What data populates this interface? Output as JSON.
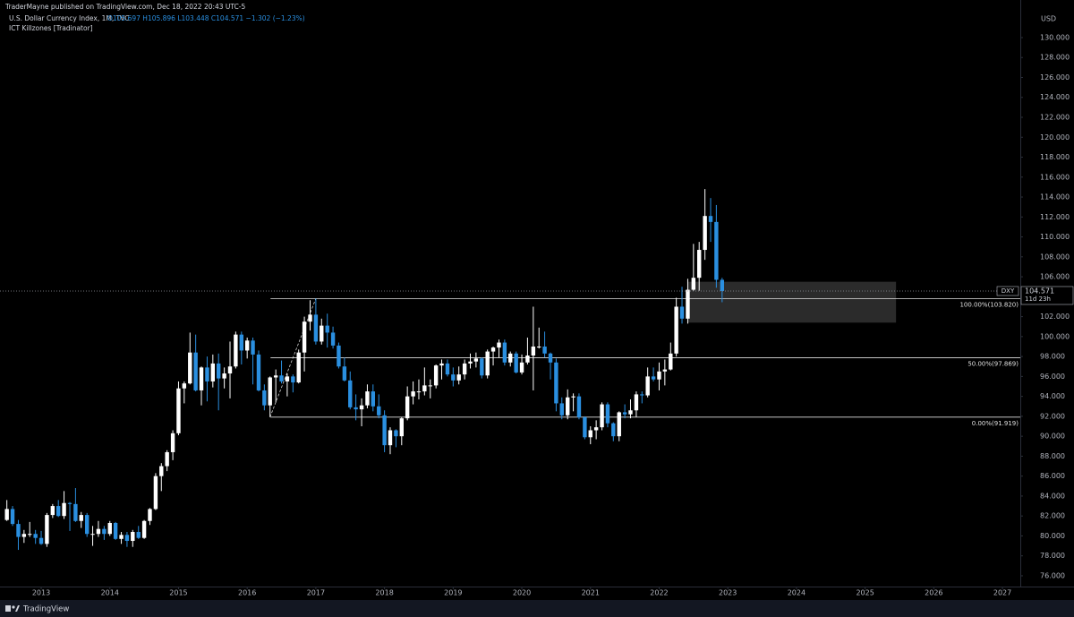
{
  "header": {
    "publisher": "TraderMayne published on TradingView.com, Dec 18, 2022 20:43 UTC-5",
    "symbol": "U.S. Dollar Currency Index, 1M, TVC",
    "ohlc": "O105.697 H105.896 L103.448 C104.571 −1.302 (−1.23%)",
    "indicator": "ICT Killzones [Tradinator]"
  },
  "footer": {
    "brand": "TradingView"
  },
  "chart_data": {
    "type": "candlestick",
    "currency": "USD",
    "up_color": "#ffffff",
    "down_color": "#2a8fe0",
    "xlim": [
      2012.4,
      2027.26
    ],
    "xticks": [
      2013,
      2014,
      2015,
      2016,
      2017,
      2018,
      2019,
      2020,
      2021,
      2022,
      2023,
      2024,
      2025,
      2026,
      2027
    ],
    "ylim": [
      74.92,
      133.77
    ],
    "yticks": [
      {
        "value": 76,
        "label": "76.000"
      },
      {
        "value": 78,
        "label": "78.000"
      },
      {
        "value": 80,
        "label": "80.000"
      },
      {
        "value": 82,
        "label": "82.000"
      },
      {
        "value": 84,
        "label": "84.000"
      },
      {
        "value": 86,
        "label": "86.000"
      },
      {
        "value": 88,
        "label": "88.000"
      },
      {
        "value": 90,
        "label": "90.000"
      },
      {
        "value": 92,
        "label": "92.000"
      },
      {
        "value": 94,
        "label": "94.000"
      },
      {
        "value": 96,
        "label": "96.000"
      },
      {
        "value": 98,
        "label": "98.000"
      },
      {
        "value": 100,
        "label": "100.000"
      },
      {
        "value": 102,
        "label": "102.000"
      },
      {
        "value": 104,
        "label": "104.000"
      },
      {
        "value": 106,
        "label": "106.000"
      },
      {
        "value": 108,
        "label": "108.000"
      },
      {
        "value": 110,
        "label": "110.000"
      },
      {
        "value": 112,
        "label": "112.000"
      },
      {
        "value": 114,
        "label": "114.000"
      },
      {
        "value": 116,
        "label": "116.000"
      },
      {
        "value": 118,
        "label": "118.000"
      },
      {
        "value": 120,
        "label": "120.000"
      },
      {
        "value": 122,
        "label": "122.000"
      },
      {
        "value": 124,
        "label": "124.000"
      },
      {
        "value": 126,
        "label": "126.000"
      },
      {
        "value": 128,
        "label": "128.000"
      },
      {
        "value": 130,
        "label": "130.000"
      }
    ],
    "x": [
      2012.5,
      2012.583,
      2012.667,
      2012.75,
      2012.833,
      2012.917,
      2013,
      2013.083,
      2013.167,
      2013.25,
      2013.333,
      2013.417,
      2013.5,
      2013.583,
      2013.667,
      2013.75,
      2013.833,
      2013.917,
      2014,
      2014.083,
      2014.167,
      2014.25,
      2014.333,
      2014.417,
      2014.5,
      2014.583,
      2014.667,
      2014.75,
      2014.833,
      2014.917,
      2015,
      2015.083,
      2015.167,
      2015.25,
      2015.333,
      2015.417,
      2015.5,
      2015.583,
      2015.667,
      2015.75,
      2015.833,
      2015.917,
      2016,
      2016.083,
      2016.167,
      2016.25,
      2016.333,
      2016.417,
      2016.5,
      2016.583,
      2016.667,
      2016.75,
      2016.833,
      2016.917,
      2017,
      2017.083,
      2017.167,
      2017.25,
      2017.333,
      2017.417,
      2017.5,
      2017.583,
      2017.667,
      2017.75,
      2017.833,
      2017.917,
      2018,
      2018.083,
      2018.167,
      2018.25,
      2018.333,
      2018.417,
      2018.5,
      2018.583,
      2018.667,
      2018.75,
      2018.833,
      2018.917,
      2019,
      2019.083,
      2019.167,
      2019.25,
      2019.333,
      2019.417,
      2019.5,
      2019.583,
      2019.667,
      2019.75,
      2019.833,
      2019.917,
      2020,
      2020.083,
      2020.167,
      2020.25,
      2020.333,
      2020.417,
      2020.5,
      2020.583,
      2020.667,
      2020.75,
      2020.833,
      2020.917,
      2021,
      2021.083,
      2021.167,
      2021.25,
      2021.333,
      2021.417,
      2021.5,
      2021.583,
      2021.667,
      2021.75,
      2021.833,
      2021.917,
      2022,
      2022.083,
      2022.167,
      2022.25,
      2022.333,
      2022.417,
      2022.5,
      2022.583,
      2022.667,
      2022.75,
      2022.833,
      2022.917
    ],
    "open": [
      81.6,
      82.7,
      81.2,
      79.9,
      80.2,
      80.2,
      79.8,
      79.2,
      82.1,
      83.0,
      82.0,
      83.3,
      83.2,
      81.5,
      82.1,
      80.2,
      80.2,
      80.7,
      80.2,
      81.3,
      79.7,
      80.1,
      79.5,
      80.4,
      79.8,
      81.5,
      82.7,
      86.0,
      87.0,
      88.4,
      90.3,
      94.8,
      95.3,
      98.4,
      94.6,
      96.9,
      95.5,
      97.3,
      95.8,
      96.3,
      97.0,
      100.2,
      98.6,
      99.6,
      98.2,
      94.6,
      93.1,
      95.9,
      96.1,
      95.5,
      96.0,
      95.4,
      98.4,
      101.5,
      102.2,
      99.5,
      101.1,
      100.4,
      99.1,
      97.0,
      95.6,
      92.9,
      92.7,
      93.1,
      94.5,
      93.0,
      92.1,
      89.1,
      90.6,
      90.0,
      91.8,
      94.0,
      94.5,
      94.5,
      95.1,
      95.1,
      97.1,
      97.3,
      96.2,
      95.6,
      96.2,
      97.3,
      97.5,
      97.8,
      96.1,
      98.5,
      98.9,
      99.4,
      97.4,
      98.3,
      96.4,
      97.4,
      98.1,
      99.0,
      99.0,
      98.3,
      97.4,
      93.3,
      92.1,
      93.9,
      94.0,
      91.9,
      89.9,
      90.6,
      90.9,
      93.2,
      91.3,
      90.0,
      92.4,
      92.2,
      92.6,
      94.2,
      94.1,
      96.0,
      95.7,
      96.5,
      96.7,
      98.3,
      103.0,
      101.8,
      104.7,
      105.9,
      108.7,
      112.1,
      111.5,
      105.697
    ],
    "high": [
      83.6,
      83.0,
      81.6,
      80.6,
      81.4,
      80.6,
      80.5,
      82.3,
      83.2,
      83.6,
      84.5,
      83.4,
      84.8,
      82.4,
      82.3,
      81.0,
      81.5,
      81.0,
      81.5,
      81.4,
      80.4,
      80.4,
      80.6,
      81.0,
      81.6,
      82.8,
      86.3,
      87.3,
      88.6,
      90.6,
      95.5,
      95.5,
      100.4,
      100.2,
      97.0,
      98.0,
      98.2,
      98.3,
      96.9,
      99.5,
      100.5,
      100.5,
      99.9,
      99.9,
      98.6,
      95.2,
      96.0,
      96.7,
      97.6,
      96.3,
      96.2,
      98.7,
      102.0,
      103.65,
      103.82,
      101.8,
      102.3,
      101.0,
      99.4,
      97.9,
      96.5,
      94.2,
      93.8,
      95.2,
      95.2,
      94.2,
      92.6,
      90.9,
      90.7,
      91.9,
      95.0,
      95.5,
      95.7,
      96.9,
      95.7,
      97.2,
      97.7,
      97.7,
      96.9,
      97.0,
      97.7,
      98.3,
      98.4,
      97.9,
      98.7,
      99.0,
      99.7,
      99.7,
      98.5,
      98.5,
      98.2,
      99.9,
      103.0,
      100.9,
      100.5,
      98.4,
      97.8,
      93.9,
      94.7,
      94.3,
      94.3,
      92.0,
      91.0,
      91.6,
      93.4,
      93.4,
      91.4,
      92.5,
      93.2,
      93.7,
      94.5,
      94.5,
      96.9,
      96.9,
      97.4,
      97.7,
      99.4,
      103.9,
      105.0,
      105.8,
      109.3,
      109.5,
      114.8,
      113.9,
      113.2,
      105.896
    ],
    "low": [
      81.5,
      81.0,
      78.6,
      79.3,
      79.9,
      79.2,
      79.1,
      78.9,
      81.8,
      81.9,
      81.7,
      80.5,
      81.4,
      80.8,
      79.9,
      79.0,
      79.9,
      79.6,
      80.0,
      79.6,
      79.2,
      78.9,
      78.9,
      79.7,
      79.7,
      81.1,
      82.6,
      84.5,
      86.5,
      87.6,
      90.1,
      93.3,
      95.2,
      94.5,
      93.1,
      93.5,
      94.9,
      92.6,
      94.8,
      93.8,
      96.8,
      97.2,
      97.8,
      95.2,
      94.5,
      92.6,
      91.92,
      93.4,
      95.3,
      94.0,
      94.4,
      95.3,
      96.5,
      100.6,
      99.2,
      99.2,
      98.9,
      98.8,
      96.8,
      95.5,
      92.7,
      91.6,
      91.0,
      92.8,
      92.5,
      91.8,
      88.4,
      88.2,
      88.9,
      89.1,
      91.6,
      93.2,
      93.7,
      94.1,
      93.8,
      94.8,
      95.7,
      96.0,
      95.0,
      95.2,
      95.7,
      96.8,
      96.9,
      95.8,
      95.8,
      97.1,
      97.9,
      97.1,
      97.0,
      96.3,
      96.2,
      97.2,
      94.6,
      98.8,
      97.9,
      95.7,
      92.5,
      91.7,
      91.7,
      92.5,
      91.7,
      89.7,
      89.2,
      89.7,
      90.6,
      90.9,
      89.5,
      89.5,
      91.8,
      91.8,
      91.9,
      93.3,
      93.9,
      95.5,
      94.6,
      95.1,
      96.6,
      98.0,
      101.3,
      101.3,
      104.6,
      104.6,
      107.7,
      109.5,
      104.9,
      103.448
    ],
    "close": [
      82.7,
      81.2,
      79.9,
      80.2,
      80.2,
      79.8,
      79.2,
      82.1,
      83.0,
      82.0,
      83.3,
      83.2,
      81.5,
      82.1,
      80.2,
      80.2,
      80.7,
      80.2,
      81.3,
      79.7,
      80.1,
      79.5,
      80.4,
      79.8,
      81.5,
      82.7,
      86.0,
      87.0,
      88.4,
      90.3,
      94.8,
      95.3,
      98.4,
      94.6,
      96.9,
      95.5,
      97.3,
      95.8,
      96.3,
      97.0,
      100.2,
      98.6,
      99.6,
      98.2,
      94.6,
      93.1,
      95.9,
      96.1,
      95.5,
      96.0,
      95.4,
      98.4,
      101.5,
      102.2,
      99.5,
      101.1,
      100.4,
      99.1,
      97.0,
      95.6,
      92.9,
      92.7,
      93.1,
      94.5,
      93.0,
      92.1,
      89.1,
      90.6,
      90.0,
      91.8,
      94.0,
      94.5,
      94.5,
      95.1,
      95.1,
      97.1,
      97.3,
      96.2,
      95.6,
      96.2,
      97.3,
      97.5,
      97.8,
      96.1,
      98.5,
      98.9,
      99.4,
      97.4,
      98.3,
      96.4,
      97.4,
      98.1,
      99.0,
      99.0,
      98.3,
      97.4,
      93.3,
      92.1,
      93.9,
      94.0,
      91.9,
      89.9,
      90.6,
      90.9,
      93.2,
      91.3,
      90.0,
      92.4,
      92.2,
      92.6,
      94.2,
      94.1,
      96.0,
      95.7,
      96.5,
      96.7,
      98.3,
      103.0,
      101.8,
      104.7,
      105.9,
      108.7,
      112.1,
      111.5,
      105.697,
      104.571
    ],
    "price_label": {
      "symbol": "DXY",
      "value": "104.571",
      "countdown": "11d 23h"
    },
    "fib": {
      "start": 2016.34,
      "levels": [
        {
          "value": 103.82,
          "label": "100.00%(103.820)"
        },
        {
          "value": 97.869,
          "label": "50.00%(97.869)"
        },
        {
          "value": 91.919,
          "label": "0.00%(91.919)"
        }
      ]
    },
    "zone": {
      "x": [
        2022.42,
        2025.45
      ],
      "y": [
        101.4,
        105.5
      ]
    }
  }
}
